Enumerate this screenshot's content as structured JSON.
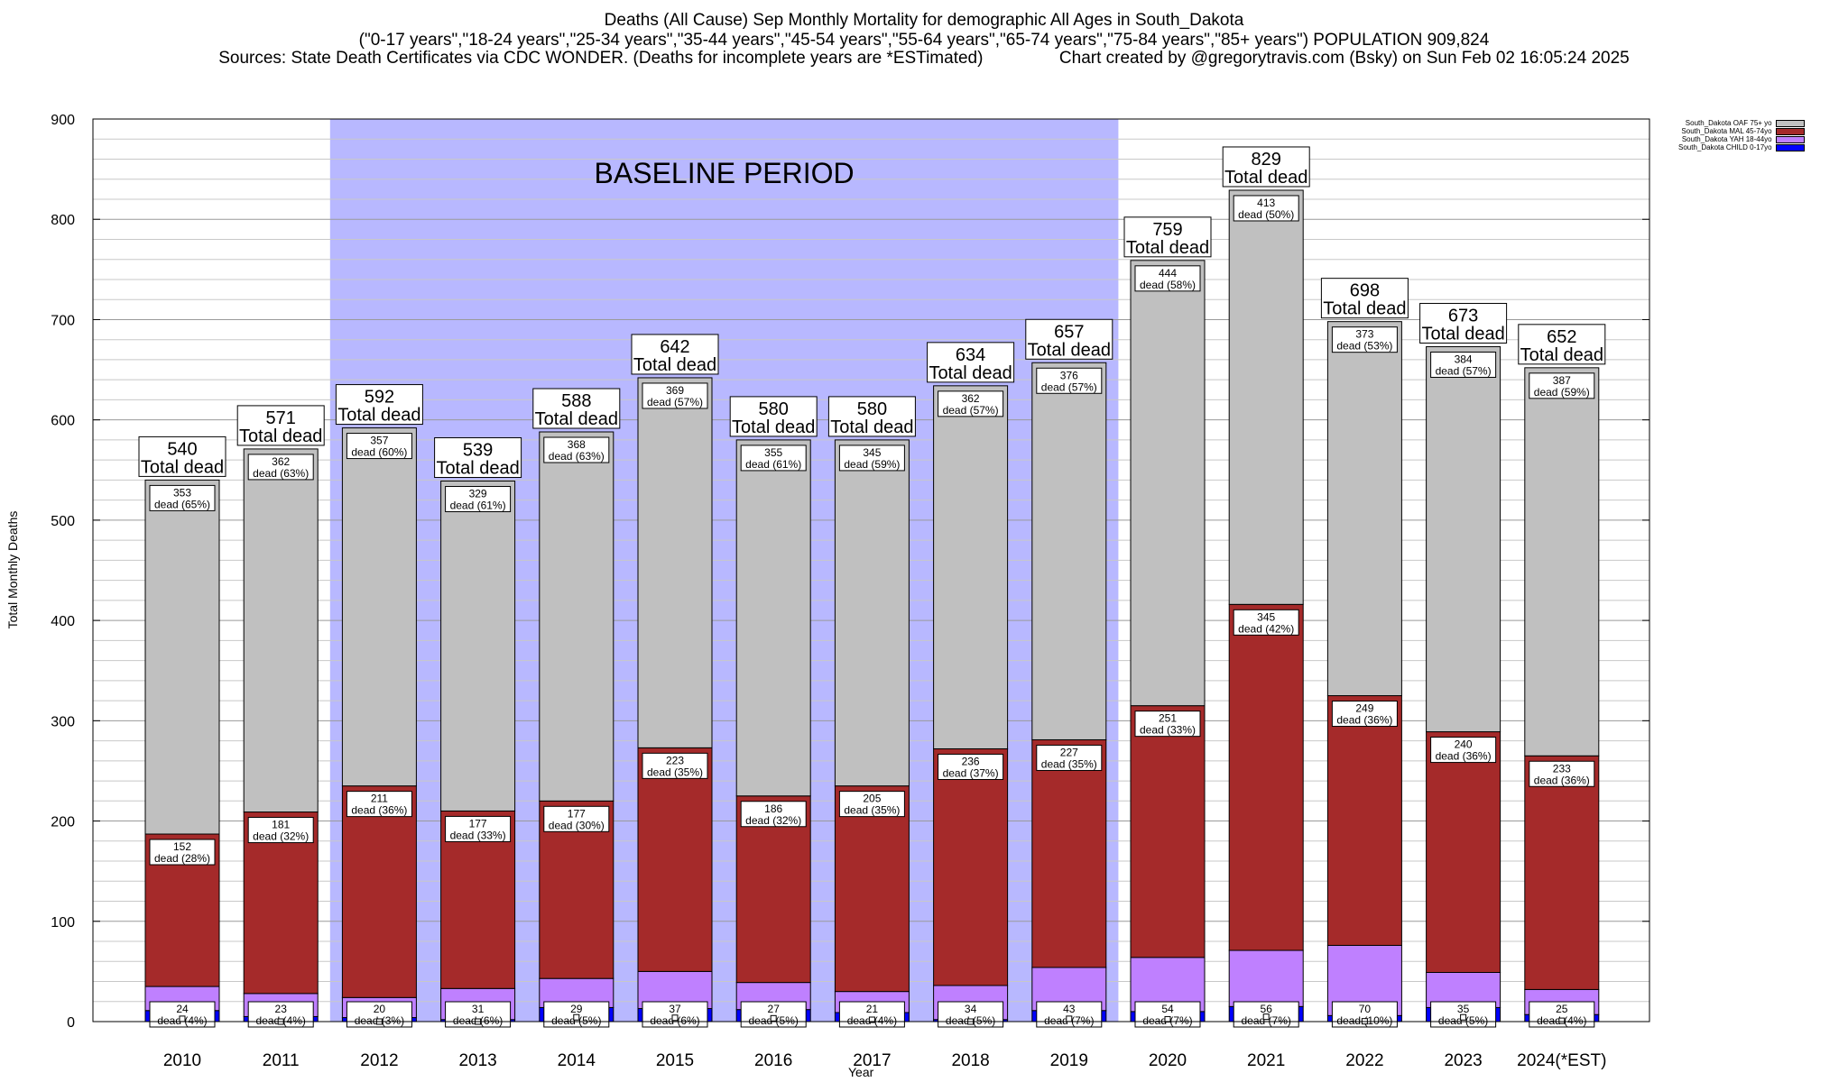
{
  "header": {
    "line1": "Deaths (All Cause) Sep Monthly Mortality for demographic All Ages in South_Dakota",
    "line2": "(\"0-17 years\",\"18-24 years\",\"25-34 years\",\"35-44 years\",\"45-54 years\",\"55-64 years\",\"65-74 years\",\"75-84 years\",\"85+ years\") POPULATION 909,824",
    "line3_left": "Sources: State Death Certificates via CDC WONDER. (Deaths for incomplete years are *ESTimated)",
    "line3_right": "Chart created by @gregorytravis.com (Bsky) on Sun Feb 02 16:05:24 2025"
  },
  "colors": {
    "oaf": "#c0c0c0",
    "mal": "#a52a2a",
    "yah": "#bf80ff",
    "child": "#0000ff",
    "baseline": "#b8b8ff"
  },
  "chart_data": {
    "type": "bar",
    "stacked": true,
    "xlabel": "Year",
    "ylabel": "Total Monthly Deaths",
    "ylim": [
      0,
      900
    ],
    "yticks": [
      0,
      100,
      200,
      300,
      400,
      500,
      600,
      700,
      800,
      900
    ],
    "grid": true,
    "legend_position": "top-right",
    "baseline_label": "BASELINE PERIOD",
    "baseline_range": [
      "2012",
      "2019"
    ],
    "total_label": "Total dead",
    "categories": [
      "2010",
      "2011",
      "2012",
      "2013",
      "2014",
      "2015",
      "2016",
      "2017",
      "2018",
      "2019",
      "2020",
      "2021",
      "2022",
      "2023",
      "2024(*EST)"
    ],
    "totals": [
      540,
      571,
      592,
      539,
      588,
      642,
      580,
      580,
      634,
      657,
      759,
      829,
      698,
      673,
      652
    ],
    "series": [
      {
        "name": "South_Dakota CHILD 0-17yo",
        "key": "child",
        "values": [
          11,
          5,
          4,
          2,
          14,
          13,
          12,
          9,
          2,
          11,
          10,
          15,
          6,
          14,
          7
        ],
        "labels": []
      },
      {
        "name": "South_Dakota YAH 18-44yo",
        "key": "yah",
        "values": [
          24,
          23,
          20,
          31,
          29,
          37,
          27,
          21,
          34,
          43,
          54,
          56,
          70,
          35,
          25
        ],
        "labels": [
          "24\ndead (4%)",
          "23\ndead (4%)",
          "20\ndead (3%)",
          "31\ndead (6%)",
          "29\ndead (5%)",
          "37\ndead (6%)",
          "27\ndead (5%)",
          "21\ndead (4%)",
          "34\ndead (5%)",
          "43\ndead (7%)",
          "54\ndead (7%)",
          "56\ndead (7%)",
          "70\ndead (10%)",
          "35\ndead (5%)",
          "25\ndead (4%)"
        ]
      },
      {
        "name": "South_Dakota MAL 45-74yo",
        "key": "mal",
        "values": [
          152,
          181,
          211,
          177,
          177,
          223,
          186,
          205,
          236,
          227,
          251,
          345,
          249,
          240,
          233
        ],
        "labels": [
          "152\ndead (28%)",
          "181\ndead (32%)",
          "211\ndead (36%)",
          "177\ndead (33%)",
          "177\ndead (30%)",
          "223\ndead (35%)",
          "186\ndead (32%)",
          "205\ndead (35%)",
          "236\ndead (37%)",
          "227\ndead (35%)",
          "251\ndead (33%)",
          "345\ndead (42%)",
          "249\ndead (36%)",
          "240\ndead (36%)",
          "233\ndead (36%)"
        ]
      },
      {
        "name": "South_Dakota OAF 75+ yo",
        "key": "oaf",
        "values": [
          353,
          362,
          357,
          329,
          368,
          369,
          355,
          345,
          362,
          376,
          444,
          413,
          373,
          384,
          387
        ],
        "labels": [
          "353\ndead (65%)",
          "362\ndead (63%)",
          "357\ndead (60%)",
          "329\ndead (61%)",
          "368\ndead (63%)",
          "369\ndead (57%)",
          "355\ndead (61%)",
          "345\ndead (59%)",
          "362\ndead (57%)",
          "376\ndead (57%)",
          "444\ndead (58%)",
          "413\ndead (50%)",
          "373\ndead (53%)",
          "384\ndead (57%)",
          "387\ndead (59%)"
        ]
      }
    ]
  }
}
